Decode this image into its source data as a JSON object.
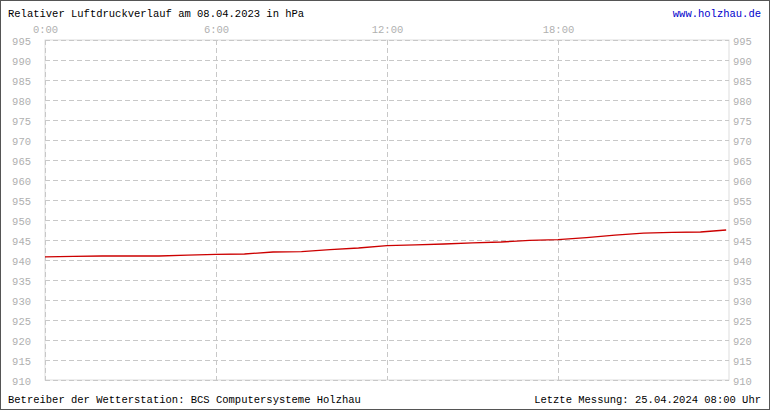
{
  "chart_data": {
    "type": "line",
    "title": "Relativer Luftdruckverlauf am 08.04.2023 in hPa",
    "source": "www.holzhau.de",
    "footer_left": "Betreiber der Wetterstation: BCS Computersysteme Holzhau",
    "footer_right": "Letzte Messung: 25.04.2024 08:00 Uhr",
    "x": [
      0,
      1,
      2,
      3,
      4,
      5,
      6,
      7,
      8,
      9,
      10,
      11,
      12,
      13,
      14,
      15,
      16,
      17,
      18,
      19,
      20,
      21,
      22,
      23,
      23.9
    ],
    "values": [
      940.8,
      940.9,
      941.0,
      941.0,
      941.0,
      941.2,
      941.4,
      941.5,
      942.0,
      942.1,
      942.6,
      943.0,
      943.6,
      943.8,
      944.0,
      944.3,
      944.5,
      944.9,
      945.1,
      945.6,
      946.2,
      946.7,
      946.9,
      947.0,
      947.5
    ],
    "color": "#cc0000",
    "xlim": [
      0,
      24
    ],
    "xticks": [
      {
        "value": 0,
        "label": "0:00"
      },
      {
        "value": 6,
        "label": "6:00"
      },
      {
        "value": 12,
        "label": "12:00"
      },
      {
        "value": 18,
        "label": "18:00"
      }
    ],
    "ylim": [
      910,
      995
    ],
    "yticks": [
      910,
      915,
      920,
      925,
      930,
      935,
      940,
      945,
      950,
      955,
      960,
      965,
      970,
      975,
      980,
      985,
      990,
      995
    ],
    "grid": true
  }
}
